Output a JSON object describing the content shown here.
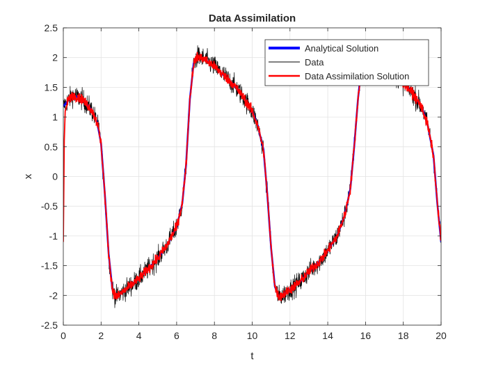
{
  "chart_data": {
    "type": "line",
    "title": "Data Assimilation",
    "xlabel": "t",
    "ylabel": "x",
    "xlim": [
      0,
      20
    ],
    "ylim": [
      -2.5,
      2.5
    ],
    "xticks": [
      0,
      2,
      4,
      6,
      8,
      10,
      12,
      14,
      16,
      18,
      20
    ],
    "yticks": [
      -2.5,
      -2,
      -1.5,
      -1,
      -0.5,
      0,
      0.5,
      1,
      1.5,
      2,
      2.5
    ],
    "xtick_labels": [
      "0",
      "2",
      "4",
      "6",
      "8",
      "10",
      "12",
      "14",
      "16",
      "18",
      "20"
    ],
    "ytick_labels": [
      "-2.5",
      "-2",
      "-1.5",
      "-1",
      "-0.5",
      "0",
      "0.5",
      "1",
      "1.5",
      "2",
      "2.5"
    ],
    "grid": true,
    "legend_position": "top-right",
    "legend_labels": [
      "Analytical Solution",
      "Data",
      "Data Assimilation Solution"
    ],
    "series": [
      {
        "name": "Analytical Solution",
        "color": "#0000ff",
        "style": "solid-thick",
        "x": [
          0,
          0.5,
          1.0,
          1.5,
          1.8,
          2.0,
          2.2,
          2.4,
          2.6,
          2.8,
          3.0,
          3.5,
          4.0,
          4.5,
          5.0,
          5.5,
          6.0,
          6.3,
          6.5,
          6.7,
          6.9,
          7.1,
          7.5,
          8.0,
          8.5,
          9.0,
          9.5,
          10.0,
          10.3,
          10.6,
          10.8,
          11.0,
          11.2,
          11.4,
          11.6,
          12.0,
          12.5,
          13.0,
          13.5,
          14.0,
          14.5,
          14.9,
          15.2,
          15.4,
          15.6,
          15.8,
          16.0,
          16.5,
          17.0,
          17.5,
          18.0,
          18.5,
          19.0,
          19.3,
          19.6,
          19.8,
          20.0
        ],
        "y": [
          1.18,
          1.37,
          1.3,
          1.12,
          0.9,
          0.55,
          -0.3,
          -1.3,
          -1.9,
          -2.03,
          -1.98,
          -1.85,
          -1.72,
          -1.55,
          -1.38,
          -1.15,
          -0.85,
          -0.45,
          0.2,
          1.3,
          1.9,
          2.02,
          1.97,
          1.85,
          1.7,
          1.55,
          1.35,
          1.1,
          0.85,
          0.45,
          -0.3,
          -1.2,
          -1.85,
          -2.02,
          -2.0,
          -1.9,
          -1.78,
          -1.6,
          -1.45,
          -1.25,
          -1.0,
          -0.65,
          -0.2,
          0.5,
          1.3,
          1.9,
          2.05,
          1.98,
          1.85,
          1.72,
          1.58,
          1.4,
          1.15,
          0.85,
          0.35,
          -0.45,
          -1.1
        ]
      },
      {
        "name": "Data",
        "color": "#000000",
        "style": "solid-thin-noisy",
        "noise_sd": 0.09
      },
      {
        "name": "Data Assimilation Solution",
        "color": "#ff0000",
        "style": "solid-medium-noisy",
        "noise_sd": 0.04,
        "x": [
          0,
          0.05,
          0.1,
          0.2
        ],
        "y": [
          -1.1,
          0.6,
          1.1,
          1.2
        ]
      }
    ]
  }
}
